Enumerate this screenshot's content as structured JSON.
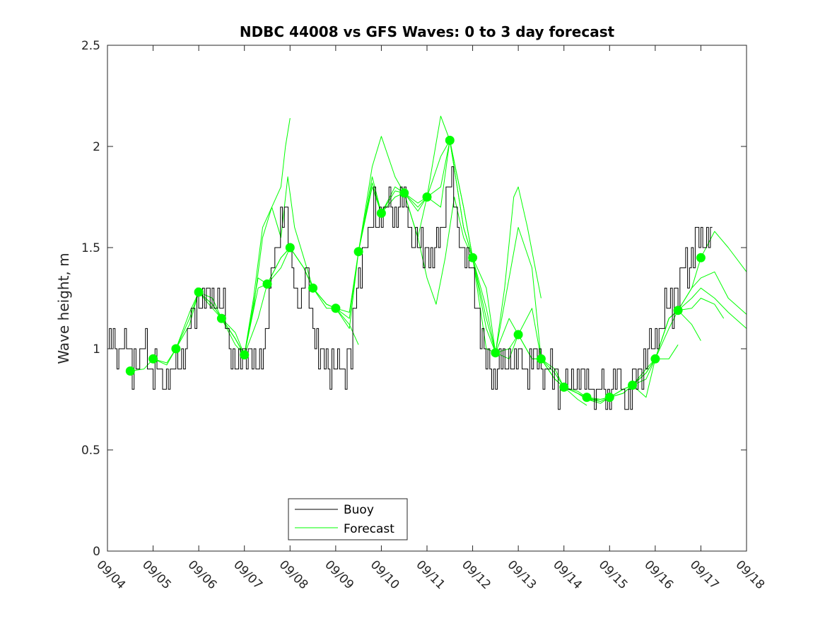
{
  "chart_data": {
    "type": "line",
    "title": "NDBC 44008 vs GFS Waves: 0 to 3 day forecast",
    "xlabel": "",
    "ylabel": "Wave height, m",
    "xlim": [
      0,
      14
    ],
    "ylim": [
      0,
      2.5
    ],
    "yticks": [
      "0",
      "0.5",
      "1",
      "1.5",
      "2",
      "2.5"
    ],
    "xtick_labels": [
      "09/04",
      "09/05",
      "09/06",
      "09/07",
      "09/08",
      "09/09",
      "09/10",
      "09/11",
      "09/12",
      "09/13",
      "09/14",
      "09/15",
      "09/16",
      "09/17",
      "09/18"
    ],
    "legend": {
      "position": "bottom-center",
      "entries": [
        "Buoy",
        "Forecast"
      ]
    },
    "colors": {
      "buoy": "#000000",
      "forecast": "#00ff00",
      "axis": "#262626"
    },
    "buoy_anchor_points": [
      [
        0.0,
        1.0
      ],
      [
        0.12,
        1.08
      ],
      [
        0.25,
        1.0
      ],
      [
        0.4,
        1.03
      ],
      [
        0.55,
        0.95
      ],
      [
        0.7,
        0.93
      ],
      [
        0.8,
        1.05
      ],
      [
        0.9,
        0.92
      ],
      [
        1.0,
        0.9
      ],
      [
        1.2,
        0.85
      ],
      [
        1.4,
        0.88
      ],
      [
        1.6,
        0.95
      ],
      [
        1.8,
        1.1
      ],
      [
        1.95,
        1.22
      ],
      [
        2.1,
        1.25
      ],
      [
        2.25,
        1.28
      ],
      [
        2.4,
        1.25
      ],
      [
        2.55,
        1.15
      ],
      [
        2.65,
        1.0
      ],
      [
        2.75,
        0.94
      ],
      [
        2.9,
        0.94
      ],
      [
        3.0,
        1.0
      ],
      [
        3.2,
        0.93
      ],
      [
        3.35,
        0.93
      ],
      [
        3.45,
        1.1
      ],
      [
        3.55,
        1.3
      ],
      [
        3.7,
        1.48
      ],
      [
        3.85,
        1.72
      ],
      [
        3.95,
        1.55
      ],
      [
        4.05,
        1.35
      ],
      [
        4.2,
        1.25
      ],
      [
        4.35,
        1.32
      ],
      [
        4.45,
        1.22
      ],
      [
        4.55,
        1.05
      ],
      [
        4.65,
        0.95
      ],
      [
        4.8,
        0.92
      ],
      [
        5.0,
        0.92
      ],
      [
        5.2,
        0.92
      ],
      [
        5.35,
        1.0
      ],
      [
        5.45,
        1.25
      ],
      [
        5.55,
        1.45
      ],
      [
        5.7,
        1.55
      ],
      [
        5.85,
        1.68
      ],
      [
        6.0,
        1.65
      ],
      [
        6.15,
        1.7
      ],
      [
        6.3,
        1.65
      ],
      [
        6.45,
        1.73
      ],
      [
        6.6,
        1.62
      ],
      [
        6.7,
        1.55
      ],
      [
        6.85,
        1.48
      ],
      [
        7.0,
        1.52
      ],
      [
        7.15,
        1.45
      ],
      [
        7.3,
        1.58
      ],
      [
        7.45,
        1.85
      ],
      [
        7.55,
        1.75
      ],
      [
        7.65,
        1.62
      ],
      [
        7.8,
        1.45
      ],
      [
        7.95,
        1.38
      ],
      [
        8.1,
        1.2
      ],
      [
        8.2,
        1.05
      ],
      [
        8.3,
        0.9
      ],
      [
        8.45,
        0.88
      ],
      [
        8.6,
        0.92
      ],
      [
        8.8,
        0.95
      ],
      [
        9.0,
        0.93
      ],
      [
        9.2,
        0.9
      ],
      [
        9.4,
        0.95
      ],
      [
        9.6,
        0.9
      ],
      [
        9.8,
        0.85
      ],
      [
        10.0,
        0.82
      ],
      [
        10.2,
        0.86
      ],
      [
        10.4,
        0.84
      ],
      [
        10.6,
        0.82
      ],
      [
        10.8,
        0.78
      ],
      [
        11.0,
        0.8
      ],
      [
        11.2,
        0.85
      ],
      [
        11.3,
        0.8
      ],
      [
        11.4,
        0.7
      ],
      [
        11.5,
        0.82
      ],
      [
        11.6,
        0.9
      ],
      [
        11.8,
        0.95
      ],
      [
        12.0,
        1.05
      ],
      [
        12.2,
        1.15
      ],
      [
        12.4,
        1.25
      ],
      [
        12.6,
        1.35
      ],
      [
        12.8,
        1.45
      ],
      [
        13.0,
        1.55
      ],
      [
        13.15,
        1.6
      ],
      [
        13.25,
        1.58
      ]
    ],
    "buoy_step_m": 0.1,
    "forecast_series": [
      {
        "name": "Forecast",
        "x": [
          0.5,
          0.8,
          1.0,
          1.3,
          1.5,
          1.8,
          2.0,
          2.3,
          2.5,
          2.8,
          3.0
        ],
        "y": [
          0.89,
          0.9,
          0.95,
          0.93,
          1.0,
          1.12,
          1.28,
          1.22,
          1.15,
          1.05,
          0.97
        ]
      },
      {
        "name": "Forecast",
        "x": [
          1.0,
          1.3,
          1.5,
          1.8,
          2.0,
          2.3,
          2.5,
          2.8,
          3.0,
          3.3,
          3.5
        ],
        "y": [
          0.95,
          0.92,
          1.0,
          1.15,
          1.28,
          1.2,
          1.15,
          1.02,
          0.97,
          1.15,
          1.32
        ]
      },
      {
        "name": "Forecast",
        "x": [
          1.5,
          1.8,
          2.0,
          2.3,
          2.5,
          2.8,
          3.0,
          3.3,
          3.5,
          3.8,
          4.0
        ],
        "y": [
          1.0,
          1.18,
          1.28,
          1.25,
          1.15,
          1.05,
          0.97,
          1.3,
          1.32,
          1.4,
          1.5
        ]
      },
      {
        "name": "Forecast",
        "x": [
          2.0,
          2.3,
          2.5,
          2.8,
          3.0,
          3.3,
          3.5,
          3.8,
          4.0,
          4.3,
          4.5
        ],
        "y": [
          1.28,
          1.22,
          1.15,
          1.05,
          0.97,
          1.35,
          1.32,
          1.45,
          1.5,
          1.4,
          1.3
        ]
      },
      {
        "name": "Forecast",
        "x": [
          2.5,
          2.8,
          3.0,
          3.2,
          3.4,
          3.6,
          3.8,
          3.9,
          4.0
        ],
        "y": [
          1.15,
          1.08,
          0.97,
          1.2,
          1.55,
          1.7,
          1.8,
          2.0,
          2.14
        ]
      },
      {
        "name": "Forecast",
        "x": [
          3.0,
          3.2,
          3.4,
          3.6,
          3.8,
          3.95,
          4.1,
          4.3,
          4.5,
          4.8,
          5.0
        ],
        "y": [
          0.97,
          1.25,
          1.6,
          1.7,
          1.55,
          1.85,
          1.6,
          1.45,
          1.3,
          1.22,
          1.2
        ]
      },
      {
        "name": "Forecast",
        "x": [
          3.5,
          3.8,
          4.0,
          4.3,
          4.5,
          4.8,
          5.0,
          5.3,
          5.5,
          5.8,
          6.0
        ],
        "y": [
          1.32,
          1.45,
          1.5,
          1.4,
          1.3,
          1.2,
          1.2,
          1.1,
          1.48,
          1.85,
          1.67
        ]
      },
      {
        "name": "Forecast",
        "x": [
          4.0,
          4.3,
          4.5,
          4.8,
          5.0,
          5.3,
          5.5
        ],
        "y": [
          1.5,
          1.4,
          1.3,
          1.22,
          1.2,
          1.12,
          1.02
        ]
      },
      {
        "name": "Forecast",
        "x": [
          4.5,
          4.8,
          5.0,
          5.3,
          5.5,
          5.8,
          6.0,
          6.3,
          6.5,
          6.8,
          7.0
        ],
        "y": [
          1.3,
          1.22,
          1.2,
          1.18,
          1.48,
          1.9,
          2.05,
          1.85,
          1.77,
          1.7,
          1.75
        ]
      },
      {
        "name": "Forecast",
        "x": [
          5.0,
          5.3,
          5.5,
          5.8,
          6.0,
          6.3,
          6.5,
          6.8,
          7.0,
          7.3,
          7.5
        ],
        "y": [
          1.2,
          1.15,
          1.48,
          1.82,
          1.67,
          1.75,
          1.77,
          1.72,
          1.75,
          1.95,
          2.03
        ]
      },
      {
        "name": "Forecast",
        "x": [
          5.5,
          5.8,
          6.0,
          6.3,
          6.5,
          6.8,
          7.0,
          7.3,
          7.5,
          7.8,
          8.0
        ],
        "y": [
          1.48,
          1.8,
          1.67,
          1.78,
          1.77,
          1.68,
          1.75,
          1.8,
          2.03,
          1.7,
          1.45
        ]
      },
      {
        "name": "Forecast",
        "x": [
          6.0,
          6.3,
          6.5,
          6.8,
          7.0,
          7.3,
          7.5,
          7.8,
          8.0,
          8.3,
          8.5
        ],
        "y": [
          1.67,
          1.8,
          1.77,
          1.55,
          1.75,
          2.15,
          2.03,
          1.6,
          1.45,
          1.1,
          0.98
        ]
      },
      {
        "name": "Forecast",
        "x": [
          6.5,
          6.8,
          7.0,
          7.2,
          7.4,
          7.6,
          7.8,
          8.0,
          8.3,
          8.5,
          8.8,
          9.0
        ],
        "y": [
          1.77,
          1.55,
          1.35,
          1.22,
          1.45,
          1.75,
          1.55,
          1.45,
          1.0,
          0.98,
          0.95,
          1.07
        ]
      },
      {
        "name": "Forecast",
        "x": [
          7.0,
          7.3,
          7.5,
          7.8,
          8.0,
          8.3,
          8.5,
          8.7,
          8.9,
          9.0,
          9.2,
          9.5
        ],
        "y": [
          1.75,
          1.7,
          2.03,
          1.6,
          1.45,
          1.3,
          0.98,
          1.3,
          1.75,
          1.8,
          1.6,
          1.25
        ]
      },
      {
        "name": "Forecast",
        "x": [
          7.5,
          7.8,
          8.0,
          8.3,
          8.5,
          8.8,
          9.0,
          9.3,
          9.5,
          9.8,
          10.0
        ],
        "y": [
          2.03,
          1.7,
          1.45,
          1.2,
          0.98,
          1.35,
          1.6,
          1.4,
          0.95,
          0.9,
          0.81
        ]
      },
      {
        "name": "Forecast",
        "x": [
          8.0,
          8.3,
          8.5,
          8.8,
          9.0,
          9.3,
          9.5,
          9.8,
          10.0,
          10.3,
          10.5
        ],
        "y": [
          1.45,
          1.15,
          0.98,
          1.15,
          1.07,
          1.2,
          0.95,
          0.88,
          0.81,
          0.75,
          0.72
        ]
      },
      {
        "name": "Forecast",
        "x": [
          8.5,
          8.8,
          9.0,
          9.3,
          9.5,
          9.8,
          10.0,
          10.3,
          10.5,
          10.8,
          11.0
        ],
        "y": [
          0.98,
          1.0,
          1.07,
          0.95,
          0.95,
          0.85,
          0.81,
          0.78,
          0.76,
          0.74,
          0.76
        ]
      },
      {
        "name": "Forecast",
        "x": [
          9.0,
          9.3,
          9.5,
          9.8,
          10.0,
          10.3,
          10.5,
          10.8,
          11.0,
          11.3,
          11.5
        ],
        "y": [
          1.07,
          0.95,
          0.95,
          0.85,
          0.81,
          0.78,
          0.75,
          0.73,
          0.76,
          0.8,
          0.82
        ]
      },
      {
        "name": "Forecast",
        "x": [
          9.5,
          9.8,
          10.0,
          10.3,
          10.5,
          10.8,
          11.0,
          11.3,
          11.5,
          11.8,
          12.0
        ],
        "y": [
          0.95,
          0.85,
          0.81,
          0.79,
          0.76,
          0.75,
          0.76,
          0.8,
          0.82,
          0.85,
          0.95
        ]
      },
      {
        "name": "Forecast",
        "x": [
          10.0,
          10.3,
          10.5,
          10.8,
          11.0,
          11.3,
          11.5,
          11.8,
          12.0,
          12.3,
          12.5
        ],
        "y": [
          0.81,
          0.78,
          0.75,
          0.74,
          0.76,
          0.78,
          0.82,
          0.76,
          0.95,
          0.95,
          1.02
        ]
      },
      {
        "name": "Forecast",
        "x": [
          10.5,
          10.8,
          11.0,
          11.3,
          11.5,
          11.8,
          12.0,
          12.3,
          12.5,
          12.8,
          13.0
        ],
        "y": [
          0.75,
          0.75,
          0.76,
          0.78,
          0.82,
          0.88,
          0.95,
          1.15,
          1.19,
          1.12,
          1.04
        ]
      },
      {
        "name": "Forecast",
        "x": [
          11.0,
          11.3,
          11.5,
          11.8,
          12.0,
          12.3,
          12.5,
          12.8,
          13.0,
          13.3,
          13.5
        ],
        "y": [
          0.76,
          0.8,
          0.82,
          0.88,
          0.95,
          1.1,
          1.19,
          1.2,
          1.25,
          1.22,
          1.15
        ]
      },
      {
        "name": "Forecast",
        "x": [
          11.5,
          11.8,
          12.0,
          12.3,
          12.5,
          12.8,
          13.0,
          13.3,
          13.6,
          14.0
        ],
        "y": [
          0.82,
          0.9,
          0.95,
          1.15,
          1.19,
          1.25,
          1.3,
          1.25,
          1.18,
          1.1
        ]
      },
      {
        "name": "Forecast",
        "x": [
          12.0,
          12.3,
          12.5,
          12.8,
          13.0,
          13.3,
          13.6,
          14.0
        ],
        "y": [
          0.95,
          1.15,
          1.19,
          1.3,
          1.35,
          1.38,
          1.25,
          1.17
        ]
      },
      {
        "name": "Forecast",
        "x": [
          12.5,
          12.8,
          13.0,
          13.3,
          13.6,
          14.0
        ],
        "y": [
          1.19,
          1.3,
          1.45,
          1.58,
          1.5,
          1.38
        ]
      }
    ],
    "forecast_markers": {
      "x": [
        0.5,
        1.0,
        1.5,
        2.0,
        2.5,
        3.0,
        3.5,
        4.0,
        4.5,
        5.0,
        5.5,
        6.0,
        6.5,
        7.0,
        7.5,
        8.0,
        8.5,
        9.0,
        9.5,
        10.0,
        10.5,
        11.0,
        11.5,
        12.0,
        12.5,
        13.0
      ],
      "y": [
        0.89,
        0.95,
        1.0,
        1.28,
        1.15,
        0.97,
        1.32,
        1.5,
        1.3,
        1.2,
        1.48,
        1.67,
        1.77,
        1.75,
        2.03,
        1.45,
        0.98,
        1.07,
        0.95,
        0.81,
        0.76,
        0.76,
        0.82,
        0.95,
        1.19,
        1.45
      ]
    }
  }
}
